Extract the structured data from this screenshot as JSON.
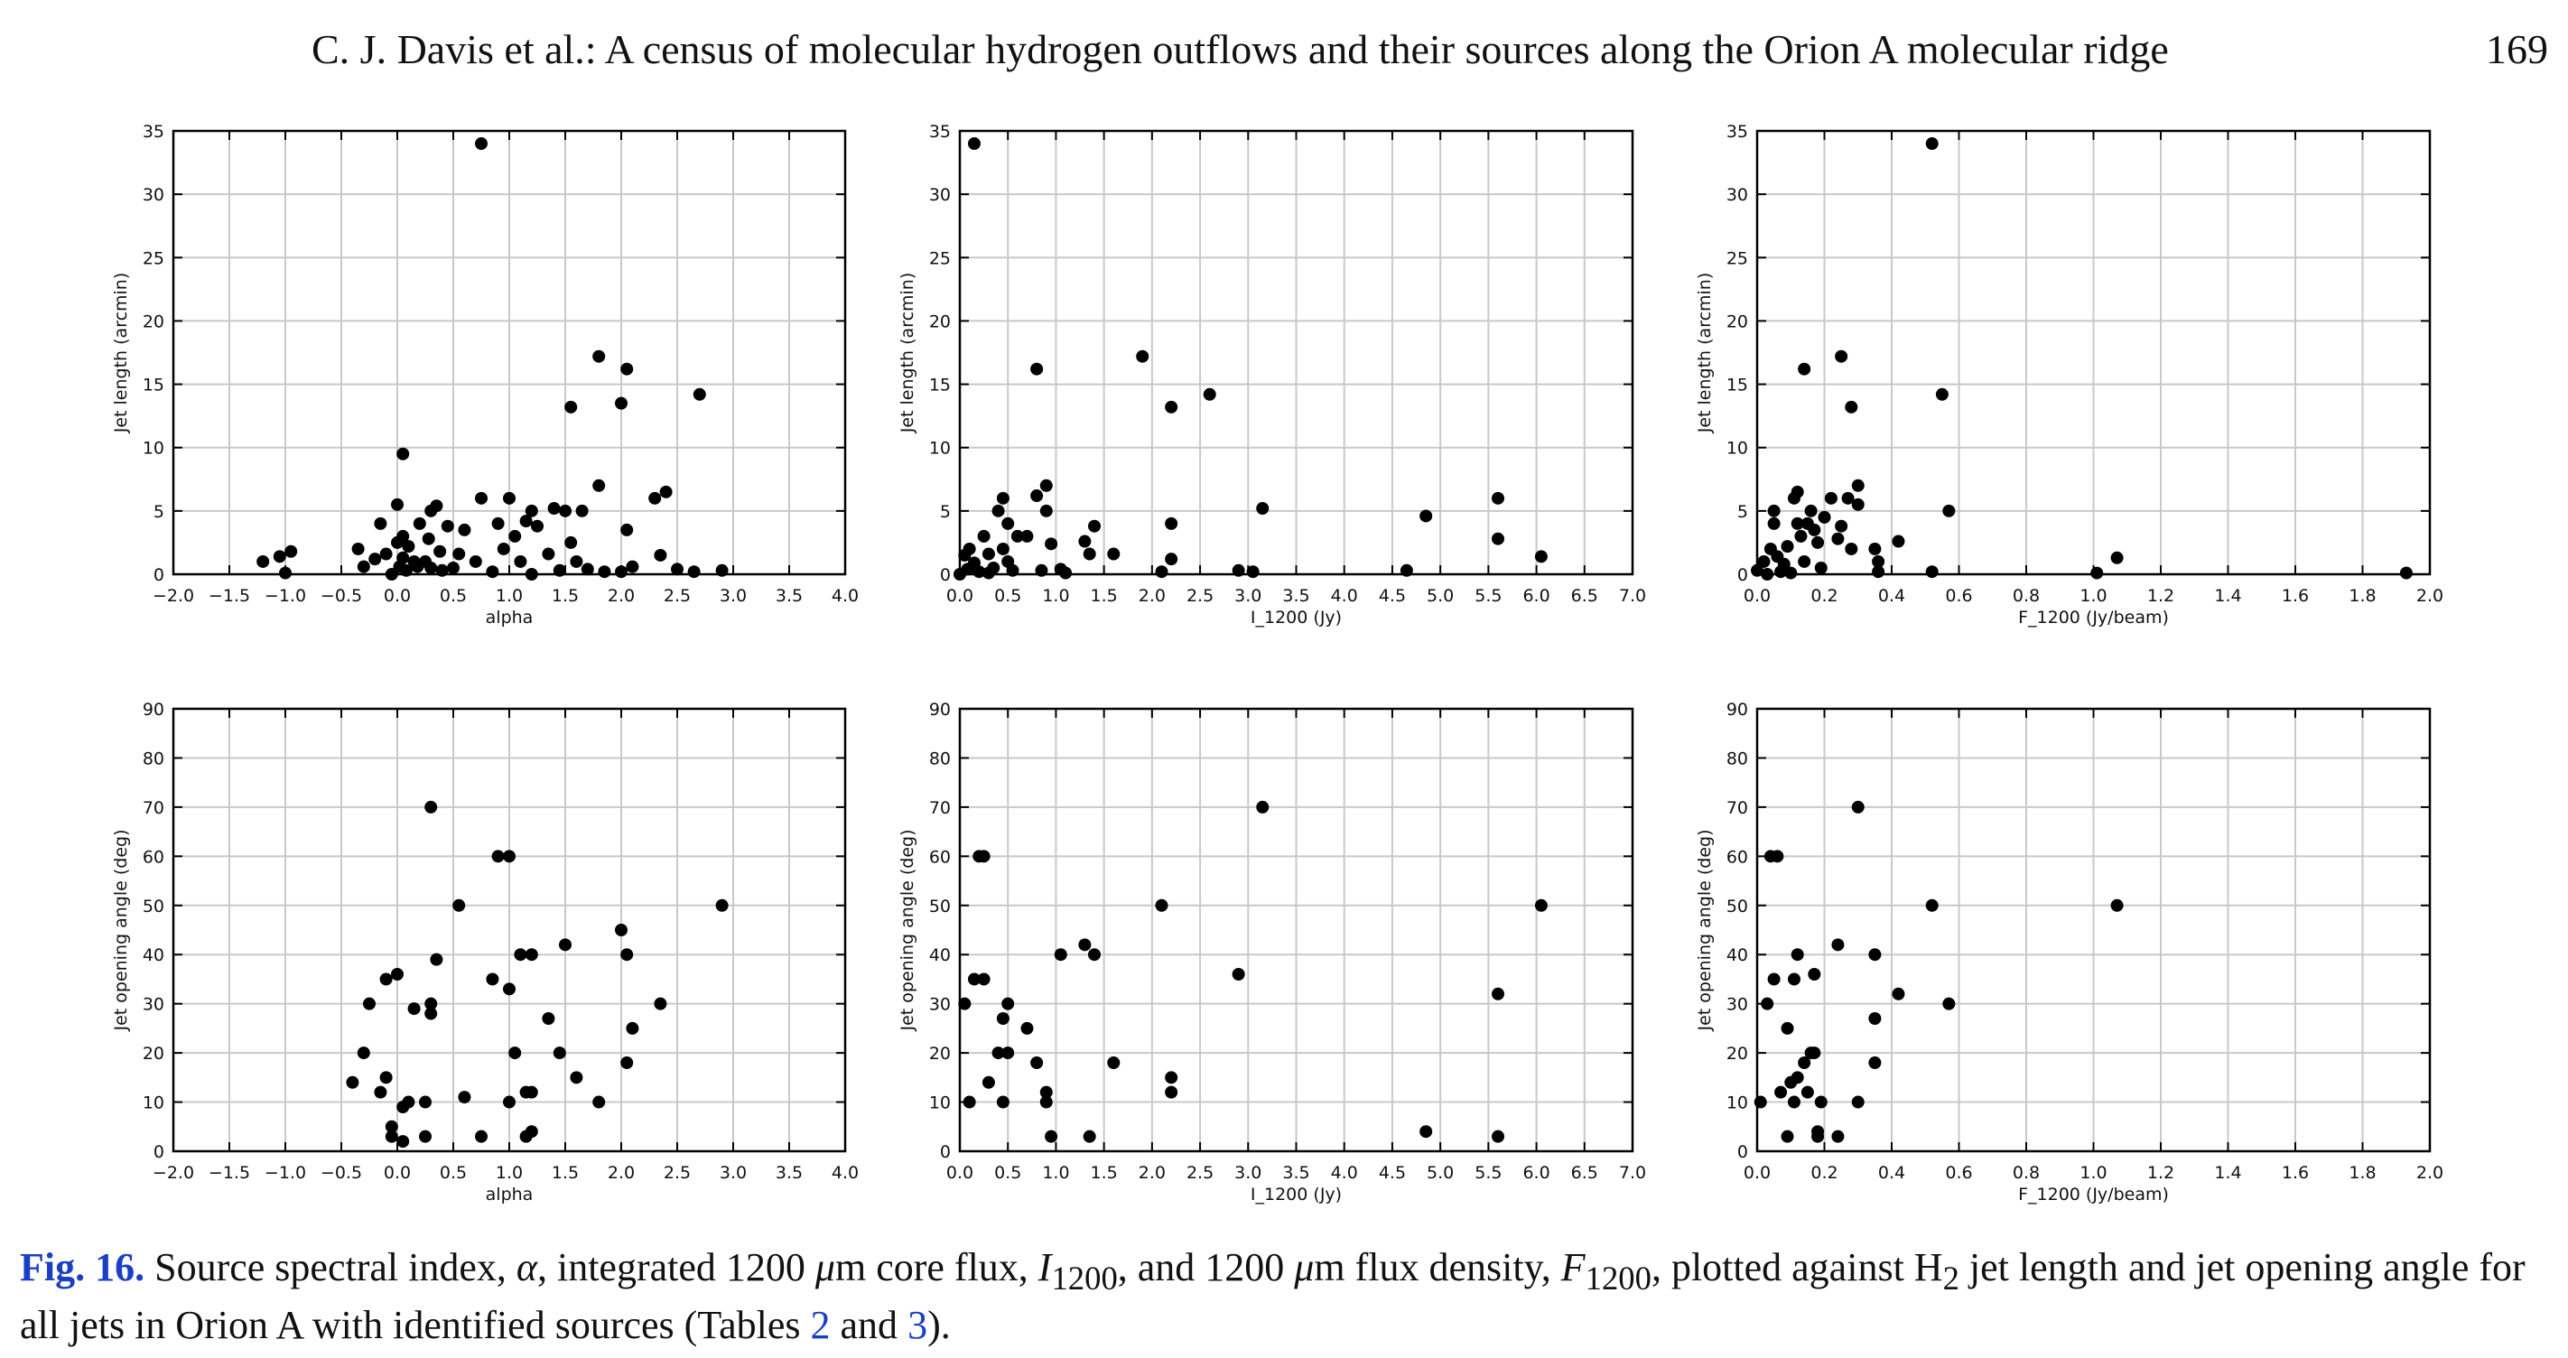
{
  "header": {
    "title": "C. J. Davis et al.: A census of molecular hydrogen outflows and their sources along the Orion A molecular ridge",
    "page_number": "169"
  },
  "caption": {
    "label": "Fig. 16.",
    "text_part1": " Source spectral index, ",
    "alpha_symbol": "α",
    "text_part2": ", integrated 1200 ",
    "mu_symbol": "μ",
    "text_part3": "m core flux, ",
    "I_symbol": "I",
    "I_sub": "1200",
    "text_part4": ", and 1200 ",
    "text_part5": "m flux density, ",
    "F_symbol": "F",
    "F_sub": "1200",
    "text_part6": ", plotted against H",
    "H_sub": "2",
    "text_part7": " jet length and jet opening angle for all jets in Orion A with identified sources (Tables ",
    "ref1": "2",
    "text_part8": " and ",
    "ref2": "3",
    "text_part9": ")."
  },
  "chart_data": [
    {
      "type": "scatter",
      "panel": "top-left",
      "xlabel": "alpha",
      "ylabel": "Jet length (arcmin)",
      "xlim": [
        -2.0,
        4.0
      ],
      "ylim": [
        0,
        35
      ],
      "xticks": [
        -2.0,
        -1.5,
        -1.0,
        -0.5,
        0.0,
        0.5,
        1.0,
        1.5,
        2.0,
        2.5,
        3.0,
        3.5,
        4.0
      ],
      "yticks": [
        0,
        5,
        10,
        15,
        20,
        25,
        30,
        35
      ],
      "grid": true,
      "points": [
        [
          0.75,
          34.0
        ],
        [
          1.8,
          17.2
        ],
        [
          2.05,
          16.2
        ],
        [
          2.7,
          14.2
        ],
        [
          1.55,
          13.2
        ],
        [
          2.0,
          13.5
        ],
        [
          0.05,
          9.5
        ],
        [
          -1.2,
          1.0
        ],
        [
          -1.05,
          1.4
        ],
        [
          -0.95,
          1.8
        ],
        [
          -1.0,
          0.1
        ],
        [
          -0.35,
          2.0
        ],
        [
          -0.3,
          0.6
        ],
        [
          -0.2,
          1.2
        ],
        [
          -0.15,
          4.0
        ],
        [
          -0.1,
          1.6
        ],
        [
          -0.05,
          0.0
        ],
        [
          0.0,
          5.5
        ],
        [
          0.0,
          2.5
        ],
        [
          0.02,
          0.6
        ],
        [
          0.05,
          3.0
        ],
        [
          0.05,
          1.3
        ],
        [
          0.08,
          0.3
        ],
        [
          0.1,
          2.2
        ],
        [
          0.15,
          1.0
        ],
        [
          0.18,
          0.6
        ],
        [
          0.2,
          4.0
        ],
        [
          0.25,
          1.0
        ],
        [
          0.28,
          2.8
        ],
        [
          0.3,
          0.5
        ],
        [
          0.3,
          5.0
        ],
        [
          0.35,
          5.4
        ],
        [
          0.38,
          1.8
        ],
        [
          0.4,
          0.3
        ],
        [
          0.45,
          3.8
        ],
        [
          0.5,
          0.5
        ],
        [
          0.55,
          1.6
        ],
        [
          0.6,
          3.5
        ],
        [
          0.7,
          1.0
        ],
        [
          0.75,
          6.0
        ],
        [
          0.85,
          0.2
        ],
        [
          0.9,
          4.0
        ],
        [
          0.95,
          2.0
        ],
        [
          1.0,
          6.0
        ],
        [
          1.05,
          3.0
        ],
        [
          1.1,
          1.0
        ],
        [
          1.15,
          4.2
        ],
        [
          1.2,
          5.0
        ],
        [
          1.2,
          0.0
        ],
        [
          1.25,
          3.8
        ],
        [
          1.35,
          1.6
        ],
        [
          1.4,
          5.2
        ],
        [
          1.45,
          0.3
        ],
        [
          1.5,
          5.0
        ],
        [
          1.55,
          2.5
        ],
        [
          1.6,
          1.0
        ],
        [
          1.65,
          5.0
        ],
        [
          1.7,
          0.4
        ],
        [
          1.8,
          7.0
        ],
        [
          1.85,
          0.2
        ],
        [
          2.0,
          0.2
        ],
        [
          2.05,
          3.5
        ],
        [
          2.1,
          0.6
        ],
        [
          2.3,
          6.0
        ],
        [
          2.4,
          6.5
        ],
        [
          2.35,
          1.5
        ],
        [
          2.5,
          0.4
        ],
        [
          2.65,
          0.2
        ],
        [
          2.9,
          0.3
        ]
      ]
    },
    {
      "type": "scatter",
      "panel": "top-middle",
      "xlabel": "I_1200 (Jy)",
      "ylabel": "Jet length (arcmin)",
      "xlim": [
        0.0,
        7.0
      ],
      "ylim": [
        0,
        35
      ],
      "xticks": [
        0.0,
        0.5,
        1.0,
        1.5,
        2.0,
        2.5,
        3.0,
        3.5,
        4.0,
        4.5,
        5.0,
        5.5,
        6.0,
        6.5,
        7.0
      ],
      "yticks": [
        0,
        5,
        10,
        15,
        20,
        25,
        30,
        35
      ],
      "grid": true,
      "points": [
        [
          0.15,
          34.0
        ],
        [
          1.9,
          17.2
        ],
        [
          0.8,
          16.2
        ],
        [
          2.6,
          14.2
        ],
        [
          2.2,
          13.2
        ],
        [
          0.05,
          1.5
        ],
        [
          0.08,
          0.4
        ],
        [
          0.1,
          2.0
        ],
        [
          0.15,
          0.9
        ],
        [
          0.2,
          0.2
        ],
        [
          0.25,
          3.0
        ],
        [
          0.3,
          1.6
        ],
        [
          0.35,
          0.5
        ],
        [
          0.4,
          5.0
        ],
        [
          0.45,
          6.0
        ],
        [
          0.45,
          2.0
        ],
        [
          0.5,
          4.0
        ],
        [
          0.5,
          1.0
        ],
        [
          0.55,
          0.3
        ],
        [
          0.6,
          3.0
        ],
        [
          0.7,
          3.0
        ],
        [
          0.8,
          6.2
        ],
        [
          0.85,
          0.3
        ],
        [
          0.9,
          7.0
        ],
        [
          0.9,
          5.0
        ],
        [
          0.95,
          2.4
        ],
        [
          1.05,
          0.4
        ],
        [
          1.1,
          0.1
        ],
        [
          1.3,
          2.6
        ],
        [
          1.35,
          1.6
        ],
        [
          1.4,
          3.8
        ],
        [
          1.6,
          1.6
        ],
        [
          2.1,
          0.2
        ],
        [
          2.2,
          4.0
        ],
        [
          2.2,
          1.2
        ],
        [
          2.9,
          0.3
        ],
        [
          3.05,
          0.2
        ],
        [
          3.15,
          5.2
        ],
        [
          4.65,
          0.3
        ],
        [
          4.85,
          4.6
        ],
        [
          5.6,
          6.0
        ],
        [
          5.6,
          2.8
        ],
        [
          6.05,
          1.4
        ],
        [
          0.0,
          0.0
        ],
        [
          0.3,
          0.1
        ]
      ]
    },
    {
      "type": "scatter",
      "panel": "top-right",
      "xlabel": "F_1200 (Jy/beam)",
      "ylabel": "Jet length (arcmin)",
      "xlim": [
        0.0,
        2.0
      ],
      "ylim": [
        0,
        35
      ],
      "xticks": [
        0.0,
        0.2,
        0.4,
        0.6,
        0.8,
        1.0,
        1.2,
        1.4,
        1.6,
        1.8,
        2.0
      ],
      "yticks": [
        0,
        5,
        10,
        15,
        20,
        25,
        30,
        35
      ],
      "grid": true,
      "points": [
        [
          0.52,
          34.0
        ],
        [
          0.25,
          17.2
        ],
        [
          0.14,
          16.2
        ],
        [
          0.55,
          14.2
        ],
        [
          0.28,
          13.2
        ],
        [
          0.0,
          0.3
        ],
        [
          0.02,
          1.0
        ],
        [
          0.03,
          0.0
        ],
        [
          0.04,
          2.0
        ],
        [
          0.05,
          5.0
        ],
        [
          0.05,
          4.0
        ],
        [
          0.06,
          1.4
        ],
        [
          0.07,
          0.2
        ],
        [
          0.08,
          0.8
        ],
        [
          0.09,
          2.2
        ],
        [
          0.1,
          0.1
        ],
        [
          0.11,
          6.0
        ],
        [
          0.12,
          6.5
        ],
        [
          0.12,
          4.0
        ],
        [
          0.13,
          3.0
        ],
        [
          0.14,
          1.0
        ],
        [
          0.15,
          4.0
        ],
        [
          0.16,
          5.0
        ],
        [
          0.17,
          3.5
        ],
        [
          0.18,
          2.5
        ],
        [
          0.19,
          0.5
        ],
        [
          0.2,
          4.5
        ],
        [
          0.22,
          6.0
        ],
        [
          0.24,
          2.8
        ],
        [
          0.25,
          3.8
        ],
        [
          0.27,
          6.0
        ],
        [
          0.28,
          2.0
        ],
        [
          0.3,
          7.0
        ],
        [
          0.3,
          5.5
        ],
        [
          0.35,
          2.0
        ],
        [
          0.36,
          1.0
        ],
        [
          0.36,
          0.2
        ],
        [
          0.42,
          2.6
        ],
        [
          0.52,
          0.2
        ],
        [
          0.57,
          5.0
        ],
        [
          1.01,
          0.1
        ],
        [
          1.07,
          1.3
        ],
        [
          1.93,
          0.1
        ]
      ]
    },
    {
      "type": "scatter",
      "panel": "bottom-left",
      "xlabel": "alpha",
      "ylabel": "Jet opening angle (deg)",
      "xlim": [
        -2.0,
        4.0
      ],
      "ylim": [
        0,
        90
      ],
      "xticks": [
        -2.0,
        -1.5,
        -1.0,
        -0.5,
        0.0,
        0.5,
        1.0,
        1.5,
        2.0,
        2.5,
        3.0,
        3.5,
        4.0
      ],
      "yticks": [
        0,
        10,
        20,
        30,
        40,
        50,
        60,
        70,
        80,
        90
      ],
      "grid": true,
      "points": [
        [
          0.3,
          70
        ],
        [
          0.9,
          60
        ],
        [
          1.0,
          60
        ],
        [
          0.55,
          50
        ],
        [
          2.9,
          50
        ],
        [
          2.0,
          45
        ],
        [
          1.5,
          42
        ],
        [
          1.1,
          40
        ],
        [
          1.2,
          40
        ],
        [
          2.05,
          40
        ],
        [
          0.35,
          39
        ],
        [
          0.0,
          36
        ],
        [
          -0.1,
          35
        ],
        [
          0.85,
          35
        ],
        [
          1.0,
          33
        ],
        [
          -0.25,
          30
        ],
        [
          0.3,
          30
        ],
        [
          2.35,
          30
        ],
        [
          0.15,
          29
        ],
        [
          0.3,
          28
        ],
        [
          1.35,
          27
        ],
        [
          2.1,
          25
        ],
        [
          -0.3,
          20
        ],
        [
          1.05,
          20
        ],
        [
          1.45,
          20
        ],
        [
          2.05,
          18
        ],
        [
          -0.1,
          15
        ],
        [
          1.6,
          15
        ],
        [
          -0.15,
          12
        ],
        [
          1.15,
          12
        ],
        [
          1.2,
          12
        ],
        [
          0.6,
          11
        ],
        [
          -0.4,
          14
        ],
        [
          0.05,
          9
        ],
        [
          0.1,
          10
        ],
        [
          0.25,
          10
        ],
        [
          1.0,
          10
        ],
        [
          1.8,
          10
        ],
        [
          -0.05,
          5
        ],
        [
          -0.05,
          3
        ],
        [
          0.05,
          2
        ],
        [
          0.25,
          3
        ],
        [
          0.75,
          3
        ],
        [
          1.15,
          3
        ],
        [
          1.2,
          4
        ]
      ]
    },
    {
      "type": "scatter",
      "panel": "bottom-middle",
      "xlabel": "I_1200 (Jy)",
      "ylabel": "Jet opening angle (deg)",
      "xlim": [
        0.0,
        7.0
      ],
      "ylim": [
        0,
        90
      ],
      "xticks": [
        0.0,
        0.5,
        1.0,
        1.5,
        2.0,
        2.5,
        3.0,
        3.5,
        4.0,
        4.5,
        5.0,
        5.5,
        6.0,
        6.5,
        7.0
      ],
      "yticks": [
        0,
        10,
        20,
        30,
        40,
        50,
        60,
        70,
        80,
        90
      ],
      "grid": true,
      "points": [
        [
          3.15,
          70
        ],
        [
          0.2,
          60
        ],
        [
          0.25,
          60
        ],
        [
          2.1,
          50
        ],
        [
          6.05,
          50
        ],
        [
          1.3,
          42
        ],
        [
          1.05,
          40
        ],
        [
          1.4,
          40
        ],
        [
          0.15,
          35
        ],
        [
          0.25,
          35
        ],
        [
          2.9,
          36
        ],
        [
          5.6,
          32
        ],
        [
          0.05,
          30
        ],
        [
          0.5,
          30
        ],
        [
          0.45,
          27
        ],
        [
          0.7,
          25
        ],
        [
          0.4,
          20
        ],
        [
          0.5,
          20
        ],
        [
          0.8,
          18
        ],
        [
          1.6,
          18
        ],
        [
          0.3,
          14
        ],
        [
          2.2,
          15
        ],
        [
          0.9,
          12
        ],
        [
          2.2,
          12
        ],
        [
          0.1,
          10
        ],
        [
          0.9,
          10
        ],
        [
          0.45,
          10
        ],
        [
          0.95,
          3
        ],
        [
          1.35,
          3
        ],
        [
          4.85,
          4
        ],
        [
          5.6,
          3
        ]
      ]
    },
    {
      "type": "scatter",
      "panel": "bottom-right",
      "xlabel": "F_1200 (Jy/beam)",
      "ylabel": "Jet opening angle (deg)",
      "xlim": [
        0.0,
        2.0
      ],
      "ylim": [
        0,
        90
      ],
      "xticks": [
        0.0,
        0.2,
        0.4,
        0.6,
        0.8,
        1.0,
        1.2,
        1.4,
        1.6,
        1.8,
        2.0
      ],
      "yticks": [
        0,
        10,
        20,
        30,
        40,
        50,
        60,
        70,
        80,
        90
      ],
      "grid": true,
      "points": [
        [
          0.3,
          70
        ],
        [
          0.04,
          60
        ],
        [
          0.06,
          60
        ],
        [
          0.52,
          50
        ],
        [
          1.07,
          50
        ],
        [
          0.24,
          42
        ],
        [
          0.12,
          40
        ],
        [
          0.35,
          40
        ],
        [
          0.05,
          35
        ],
        [
          0.11,
          35
        ],
        [
          0.17,
          36
        ],
        [
          0.42,
          32
        ],
        [
          0.03,
          30
        ],
        [
          0.57,
          30
        ],
        [
          0.35,
          27
        ],
        [
          0.09,
          25
        ],
        [
          0.16,
          20
        ],
        [
          0.17,
          20
        ],
        [
          0.14,
          18
        ],
        [
          0.35,
          18
        ],
        [
          0.1,
          14
        ],
        [
          0.12,
          15
        ],
        [
          0.07,
          12
        ],
        [
          0.15,
          12
        ],
        [
          0.01,
          10
        ],
        [
          0.11,
          10
        ],
        [
          0.19,
          10
        ],
        [
          0.3,
          10
        ],
        [
          0.09,
          3
        ],
        [
          0.18,
          3
        ],
        [
          0.18,
          4
        ],
        [
          0.24,
          3
        ]
      ]
    }
  ]
}
